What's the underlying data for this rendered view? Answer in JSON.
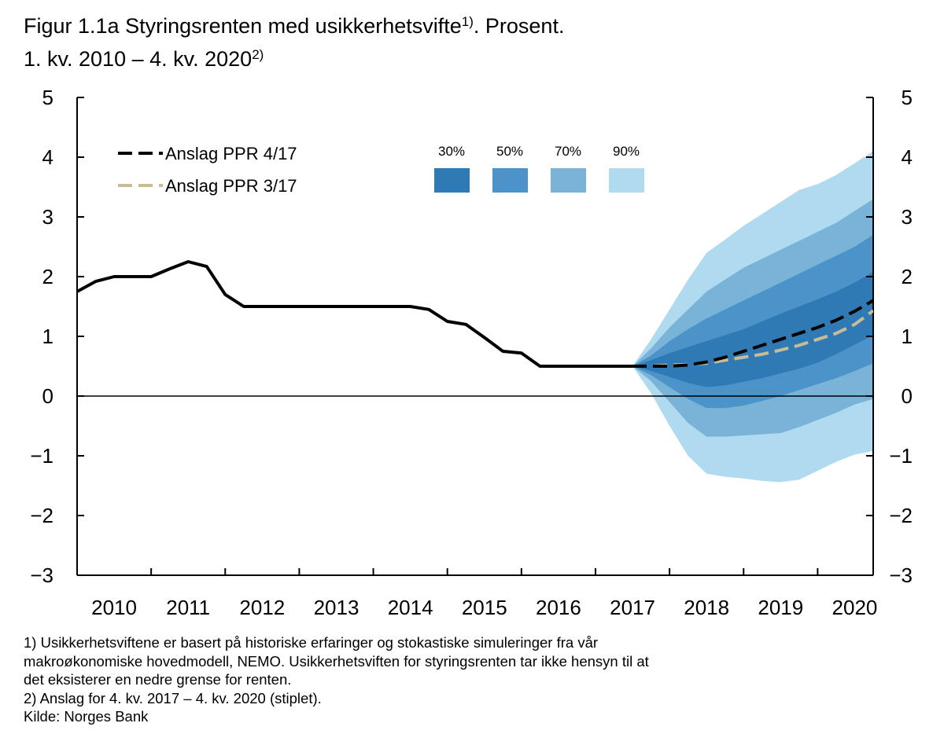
{
  "title": {
    "line1_text": "Figur 1.1a Styringsrenten med usikkerhetsvifte",
    "line1_sup": "1)",
    "line1_suffix": ". Prosent.",
    "line2_text": "1. kv. 2010 – 4. kv. 2020",
    "line2_sup": "2)"
  },
  "chart_data": {
    "type": "line",
    "title": "Figur 1.1a Styringsrenten med usikkerhetsvifte. Prosent.",
    "xlim": [
      2010.0,
      2020.75
    ],
    "ylim": [
      -3,
      5
    ],
    "yticks": [
      5,
      4,
      3,
      2,
      1,
      0,
      -1,
      -2,
      -3
    ],
    "ytick_labels": [
      "5",
      "4",
      "3",
      "2",
      "1",
      "0",
      "−1",
      "−2",
      "−3"
    ],
    "xticks": [
      2010,
      2011,
      2012,
      2013,
      2014,
      2015,
      2016,
      2017,
      2018,
      2019,
      2020
    ],
    "xtick_labels": [
      "2010",
      "2011",
      "2012",
      "2013",
      "2014",
      "2015",
      "2016",
      "2017",
      "2018",
      "2019",
      "2020"
    ],
    "legend": {
      "placement": "top-left",
      "ppr417_label": "Anslag PPR 4/17",
      "ppr317_label": "Anslag PPR 3/17"
    },
    "band_legend": {
      "placement": "top-center",
      "items": [
        {
          "label": "30%",
          "color": "#2f7ab5"
        },
        {
          "label": "50%",
          "color": "#4b93c8"
        },
        {
          "label": "70%",
          "color": "#79b4d8"
        },
        {
          "label": "90%",
          "color": "#b0daf0"
        }
      ]
    },
    "colors": {
      "history": "#000000",
      "ppr417": "#000000",
      "ppr317": "#c8bc95",
      "zero_line": "#000000"
    },
    "series": [
      {
        "name": "Historikk",
        "style": "solid",
        "x": [
          2010.0,
          2010.25,
          2010.5,
          2010.75,
          2011.0,
          2011.25,
          2011.5,
          2011.75,
          2012.0,
          2012.25,
          2012.5,
          2012.75,
          2013.0,
          2013.25,
          2013.5,
          2013.75,
          2014.0,
          2014.25,
          2014.5,
          2014.75,
          2015.0,
          2015.25,
          2015.5,
          2015.75,
          2016.0,
          2016.25,
          2016.5,
          2016.75,
          2017.0,
          2017.25,
          2017.5
        ],
        "values": [
          1.75,
          1.92,
          2.0,
          2.0,
          2.0,
          2.13,
          2.25,
          2.17,
          1.7,
          1.5,
          1.5,
          1.5,
          1.5,
          1.5,
          1.5,
          1.5,
          1.5,
          1.5,
          1.5,
          1.45,
          1.25,
          1.2,
          0.98,
          0.75,
          0.72,
          0.5,
          0.5,
          0.5,
          0.5,
          0.5,
          0.5
        ]
      },
      {
        "name": "Anslag PPR 4/17",
        "style": "dashed",
        "x": [
          2017.5,
          2017.75,
          2018.0,
          2018.25,
          2018.5,
          2018.75,
          2019.0,
          2019.25,
          2019.5,
          2019.75,
          2020.0,
          2020.25,
          2020.5,
          2020.75
        ],
        "values": [
          0.5,
          0.5,
          0.5,
          0.52,
          0.57,
          0.65,
          0.75,
          0.85,
          0.95,
          1.05,
          1.15,
          1.27,
          1.42,
          1.6
        ]
      },
      {
        "name": "Anslag PPR 3/17",
        "style": "dashed",
        "x": [
          2017.5,
          2017.75,
          2018.0,
          2018.25,
          2018.5,
          2018.75,
          2019.0,
          2019.25,
          2019.5,
          2019.75,
          2020.0,
          2020.25,
          2020.5,
          2020.75
        ],
        "values": [
          0.5,
          0.5,
          0.52,
          0.53,
          0.55,
          0.6,
          0.65,
          0.7,
          0.77,
          0.85,
          0.95,
          1.05,
          1.2,
          1.43
        ]
      }
    ],
    "fan": {
      "x": [
        2017.5,
        2017.75,
        2018.0,
        2018.25,
        2018.5,
        2018.75,
        2019.0,
        2019.25,
        2019.5,
        2019.75,
        2020.0,
        2020.25,
        2020.5,
        2020.75
      ],
      "bands": [
        {
          "name": "90%",
          "upper": [
            0.5,
            0.95,
            1.45,
            1.95,
            2.4,
            2.62,
            2.85,
            3.05,
            3.25,
            3.45,
            3.55,
            3.7,
            3.9,
            4.1
          ],
          "lower": [
            0.5,
            0.05,
            -0.5,
            -1.0,
            -1.3,
            -1.35,
            -1.38,
            -1.42,
            -1.44,
            -1.4,
            -1.25,
            -1.1,
            -0.98,
            -0.92
          ]
        },
        {
          "name": "70%",
          "upper": [
            0.5,
            0.8,
            1.15,
            1.45,
            1.75,
            1.95,
            2.15,
            2.3,
            2.45,
            2.6,
            2.75,
            2.9,
            3.1,
            3.3
          ],
          "lower": [
            0.5,
            0.25,
            -0.1,
            -0.45,
            -0.68,
            -0.68,
            -0.66,
            -0.64,
            -0.62,
            -0.52,
            -0.4,
            -0.28,
            -0.14,
            -0.05
          ]
        },
        {
          "name": "50%",
          "upper": [
            0.5,
            0.68,
            0.92,
            1.12,
            1.3,
            1.45,
            1.6,
            1.75,
            1.9,
            2.05,
            2.2,
            2.35,
            2.5,
            2.7
          ],
          "lower": [
            0.5,
            0.35,
            0.15,
            -0.05,
            -0.2,
            -0.2,
            -0.16,
            -0.08,
            0.0,
            0.1,
            0.2,
            0.3,
            0.42,
            0.55
          ]
        },
        {
          "name": "30%",
          "upper": [
            0.5,
            0.6,
            0.72,
            0.82,
            0.92,
            1.02,
            1.12,
            1.25,
            1.38,
            1.5,
            1.62,
            1.75,
            1.9,
            2.08
          ],
          "lower": [
            0.5,
            0.42,
            0.32,
            0.22,
            0.15,
            0.18,
            0.24,
            0.3,
            0.38,
            0.46,
            0.56,
            0.7,
            0.86,
            1.02
          ]
        }
      ]
    }
  },
  "notes": {
    "line1": "1) Usikkerhetsviftene er basert på historiske erfaringer og stokastiske simuleringer fra vår",
    "line2": "makroøkonomiske hovedmodell, NEMO. Usikkerhetsviften for styringsrenten tar ikke hensyn til at",
    "line3": "det eksisterer en nedre grense for renten.",
    "line4": "2) Anslag for 4. kv. 2017 – 4. kv. 2020 (stiplet).",
    "source": "Kilde: Norges Bank"
  }
}
